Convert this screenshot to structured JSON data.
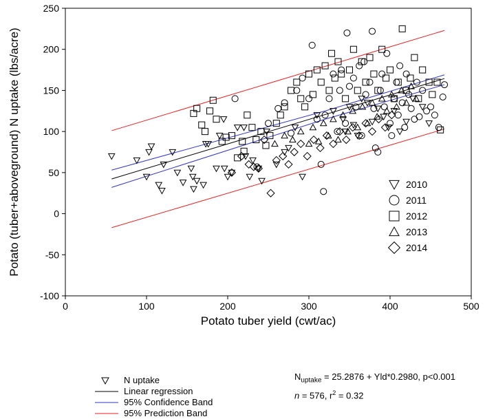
{
  "chart_data": {
    "type": "scatter",
    "xlabel": "Potato tuber yield (cwt/ac)",
    "ylabel": "Potato (tuber+aboveground) N uptake (lbs/acre)",
    "xlim": [
      0,
      500
    ],
    "ylim": [
      -100,
      250
    ],
    "x_ticks": [
      "0",
      "100",
      "200",
      "300",
      "400",
      "500"
    ],
    "y_ticks": [
      "-100",
      "-50",
      "0",
      "50",
      "100",
      "150",
      "200",
      "250"
    ],
    "grid": false,
    "legend_position": "right",
    "marker_color": "#000000",
    "series": [
      {
        "name": "2010",
        "marker": "triangle-down",
        "points": [
          [
            57,
            70
          ],
          [
            88,
            65
          ],
          [
            100,
            45
          ],
          [
            103,
            75
          ],
          [
            106,
            82
          ],
          [
            115,
            35
          ],
          [
            119,
            28
          ],
          [
            121,
            60
          ],
          [
            132,
            75
          ],
          [
            138,
            50
          ],
          [
            145,
            38
          ],
          [
            155,
            55
          ],
          [
            157,
            45
          ],
          [
            158,
            30
          ],
          [
            162,
            40
          ],
          [
            170,
            35
          ],
          [
            173,
            85
          ],
          [
            176,
            85
          ],
          [
            186,
            55
          ],
          [
            190,
            95
          ],
          [
            195,
            115
          ],
          [
            196,
            55
          ],
          [
            200,
            45
          ],
          [
            205,
            50
          ],
          [
            212,
            105
          ],
          [
            220,
            105
          ],
          [
            222,
            70
          ],
          [
            227,
            45
          ],
          [
            231,
            65
          ],
          [
            238,
            55
          ],
          [
            242,
            40
          ],
          [
            248,
            100
          ],
          [
            260,
            60
          ],
          [
            270,
            75
          ],
          [
            275,
            80
          ],
          [
            283,
            105
          ],
          [
            292,
            45
          ],
          [
            310,
            120
          ],
          [
            330,
            125
          ],
          [
            342,
            115
          ],
          [
            345,
            100
          ],
          [
            350,
            130
          ],
          [
            355,
            108
          ],
          [
            360,
            95
          ],
          [
            365,
            140
          ],
          [
            372,
            135
          ],
          [
            378,
            112
          ],
          [
            385,
            128
          ],
          [
            392,
            118
          ],
          [
            398,
            105
          ],
          [
            405,
            125
          ],
          [
            412,
            100
          ],
          [
            420,
            112
          ],
          [
            428,
            140
          ],
          [
            440,
            130
          ],
          [
            448,
            110
          ]
        ]
      },
      {
        "name": "2011",
        "marker": "circle",
        "points": [
          [
            209,
            140
          ],
          [
            236,
            57
          ],
          [
            250,
            110
          ],
          [
            262,
            128
          ],
          [
            270,
            135
          ],
          [
            278,
            98
          ],
          [
            285,
            150
          ],
          [
            292,
            165
          ],
          [
            300,
            140
          ],
          [
            304,
            205
          ],
          [
            310,
            115
          ],
          [
            315,
            60
          ],
          [
            318,
            27
          ],
          [
            320,
            120
          ],
          [
            325,
            140
          ],
          [
            330,
            170
          ],
          [
            335,
            100
          ],
          [
            338,
            150
          ],
          [
            340,
            175
          ],
          [
            345,
            110
          ],
          [
            347,
            220
          ],
          [
            350,
            155
          ],
          [
            355,
            165
          ],
          [
            358,
            130
          ],
          [
            362,
            180
          ],
          [
            365,
            95
          ],
          [
            368,
            185
          ],
          [
            370,
            145
          ],
          [
            375,
            160
          ],
          [
            378,
            222
          ],
          [
            380,
            128
          ],
          [
            382,
            80
          ],
          [
            385,
            75
          ],
          [
            388,
            150
          ],
          [
            390,
            170
          ],
          [
            393,
            130
          ],
          [
            396,
            195
          ],
          [
            400,
            110
          ],
          [
            402,
            95
          ],
          [
            405,
            140
          ],
          [
            408,
            160
          ],
          [
            410,
            120
          ],
          [
            412,
            180
          ],
          [
            415,
            135
          ],
          [
            418,
            105
          ],
          [
            420,
            170
          ],
          [
            423,
            145
          ],
          [
            426,
            128
          ],
          [
            430,
            115
          ],
          [
            433,
            160
          ],
          [
            436,
            118
          ],
          [
            440,
            150
          ],
          [
            445,
            125
          ],
          [
            450,
            130
          ],
          [
            455,
            120
          ],
          [
            460,
            105
          ],
          [
            465,
            142
          ],
          [
            467,
            157
          ]
        ]
      },
      {
        "name": "2012",
        "marker": "square",
        "points": [
          [
            158,
            122
          ],
          [
            162,
            128
          ],
          [
            168,
            108
          ],
          [
            172,
            100
          ],
          [
            178,
            125
          ],
          [
            182,
            138
          ],
          [
            186,
            115
          ],
          [
            193,
            88
          ],
          [
            198,
            93
          ],
          [
            205,
            95
          ],
          [
            212,
            68
          ],
          [
            218,
            88
          ],
          [
            220,
            76
          ],
          [
            224,
            120
          ],
          [
            230,
            105
          ],
          [
            235,
            90
          ],
          [
            241,
            100
          ],
          [
            247,
            83
          ],
          [
            252,
            95
          ],
          [
            260,
            110
          ],
          [
            265,
            120
          ],
          [
            270,
            130
          ],
          [
            278,
            150
          ],
          [
            285,
            160
          ],
          [
            290,
            140
          ],
          [
            295,
            130
          ],
          [
            300,
            170
          ],
          [
            305,
            145
          ],
          [
            310,
            175
          ],
          [
            315,
            160
          ],
          [
            320,
            180
          ],
          [
            325,
            150
          ],
          [
            328,
            195
          ],
          [
            332,
            165
          ],
          [
            336,
            185
          ],
          [
            340,
            170
          ],
          [
            345,
            140
          ],
          [
            350,
            175
          ],
          [
            355,
            200
          ],
          [
            360,
            150
          ],
          [
            365,
            185
          ],
          [
            370,
            160
          ],
          [
            375,
            190
          ],
          [
            380,
            170
          ],
          [
            385,
            150
          ],
          [
            390,
            200
          ],
          [
            395,
            165
          ],
          [
            400,
            175
          ],
          [
            405,
            140
          ],
          [
            410,
            160
          ],
          [
            415,
            225
          ],
          [
            420,
            150
          ],
          [
            425,
            165
          ],
          [
            430,
            190
          ],
          [
            435,
            140
          ],
          [
            440,
            175
          ],
          [
            448,
            160
          ],
          [
            452,
            145
          ],
          [
            458,
            160
          ],
          [
            462,
            102
          ]
        ]
      },
      {
        "name": "2013",
        "marker": "triangle-up",
        "points": [
          [
            258,
            85
          ],
          [
            270,
            95
          ],
          [
            280,
            90
          ],
          [
            290,
            100
          ],
          [
            300,
            85
          ],
          [
            305,
            105
          ],
          [
            312,
            88
          ],
          [
            318,
            110
          ],
          [
            324,
            95
          ],
          [
            330,
            115
          ],
          [
            336,
            90
          ],
          [
            342,
            120
          ],
          [
            348,
            100
          ],
          [
            354,
            125
          ],
          [
            360,
            105
          ],
          [
            366,
            130
          ],
          [
            372,
            110
          ],
          [
            378,
            135
          ],
          [
            384,
            118
          ],
          [
            390,
            140
          ],
          [
            396,
            125
          ],
          [
            402,
            145
          ],
          [
            408,
            130
          ],
          [
            414,
            150
          ],
          [
            420,
            135
          ],
          [
            426,
            155
          ],
          [
            432,
            140
          ]
        ]
      },
      {
        "name": "2014",
        "marker": "diamond",
        "points": [
          [
            205,
            50
          ],
          [
            217,
            70
          ],
          [
            226,
            60
          ],
          [
            232,
            57
          ],
          [
            238,
            55
          ],
          [
            245,
            90
          ],
          [
            253,
            25
          ],
          [
            260,
            65
          ],
          [
            268,
            70
          ],
          [
            275,
            60
          ],
          [
            282,
            75
          ],
          [
            290,
            85
          ],
          [
            298,
            70
          ],
          [
            306,
            90
          ],
          [
            314,
            80
          ],
          [
            322,
            95
          ],
          [
            330,
            85
          ],
          [
            338,
            100
          ],
          [
            346,
            90
          ],
          [
            354,
            105
          ],
          [
            362,
            95
          ],
          [
            370,
            110
          ],
          [
            378,
            100
          ],
          [
            386,
            115
          ],
          [
            394,
            105
          ],
          [
            402,
            120
          ]
        ]
      }
    ],
    "lines": [
      {
        "name": "Linear regression",
        "color": "#000000",
        "intercept": 25.2876,
        "slope": 0.298,
        "x_range": [
          57,
          467
        ]
      },
      {
        "name": "95% Confidence Band",
        "color": "#3333cc",
        "upper": [
          [
            57,
            53
          ],
          [
            320,
            125
          ],
          [
            467,
            169
          ]
        ],
        "lower": [
          [
            57,
            32
          ],
          [
            320,
            115
          ],
          [
            467,
            157
          ]
        ]
      },
      {
        "name": "95% Prediction Band",
        "color": "#ee2222",
        "upper": [
          [
            57,
            101
          ],
          [
            467,
            223
          ]
        ],
        "lower": [
          [
            57,
            -17
          ],
          [
            467,
            103
          ]
        ]
      }
    ],
    "equation": {
      "prefix": "N",
      "subscript": "uptake",
      "rest": " = 25.2876 + Yld*0.2980, p<0.001",
      "n_label": "n",
      "n_rest": " = 576, r",
      "r_sup": "2",
      "r_rest": " = 0.32"
    },
    "bottom_legend": [
      {
        "label": "N uptake",
        "kind": "marker"
      },
      {
        "label": "Linear regression",
        "kind": "line",
        "color": "#000000"
      },
      {
        "label": "95% Confidence Band",
        "kind": "line",
        "color": "#3333cc"
      },
      {
        "label": "95% Prediction Band",
        "kind": "line",
        "color": "#ee2222"
      }
    ]
  }
}
